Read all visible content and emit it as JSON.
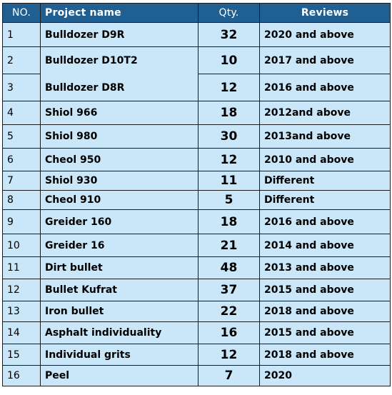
{
  "headers": {
    "no": "NO.",
    "name": "Project name",
    "qty": "Qty.",
    "reviews": "Reviews"
  },
  "rows": [
    {
      "no": "1",
      "name": "Bulldozer D9R",
      "qty": "32",
      "reviews": "2020 and above"
    },
    {
      "no": "2",
      "name": "Bulldozer D10T2",
      "qty": "10",
      "reviews": "2017 and above"
    },
    {
      "no": "3",
      "name": "Bulldozer D8R",
      "qty": "12",
      "reviews": "2016 and above"
    },
    {
      "no": "4",
      "name": "Shiol 966",
      "qty": "18",
      "reviews": "2012and above"
    },
    {
      "no": "5",
      "name": "Shiol 980",
      "qty": "30",
      "reviews": "2013and above"
    },
    {
      "no": "6",
      "name": "Cheol 950",
      "qty": "12",
      "reviews": "2010 and above"
    },
    {
      "no": "7",
      "name": "Shiol 930",
      "qty": "11",
      "reviews": "Different"
    },
    {
      "no": "8",
      "name": "Cheol 910",
      "qty": "5",
      "reviews": "Different"
    },
    {
      "no": "9",
      "name": "Greider 160",
      "qty": "18",
      "reviews": "2016 and above"
    },
    {
      "no": "10",
      "name": "Greider 16",
      "qty": "21",
      "reviews": "2014 and above"
    },
    {
      "no": "11",
      "name": "Dirt bullet",
      "qty": "48",
      "reviews": "2013 and above"
    },
    {
      "no": "12",
      "name": "Bullet Kufrat",
      "qty": "37",
      "reviews": "2015 and above"
    },
    {
      "no": "13",
      "name": "Iron bullet",
      "qty": "22",
      "reviews": "2018 and above"
    },
    {
      "no": "14",
      "name": "Asphalt individuality",
      "qty": "16",
      "reviews": "2015 and above"
    },
    {
      "no": "15",
      "name": "Individual grits",
      "qty": "12",
      "reviews": "2018 and above"
    },
    {
      "no": "16",
      "name": "Peel",
      "qty": "7",
      "reviews": "2020"
    }
  ]
}
